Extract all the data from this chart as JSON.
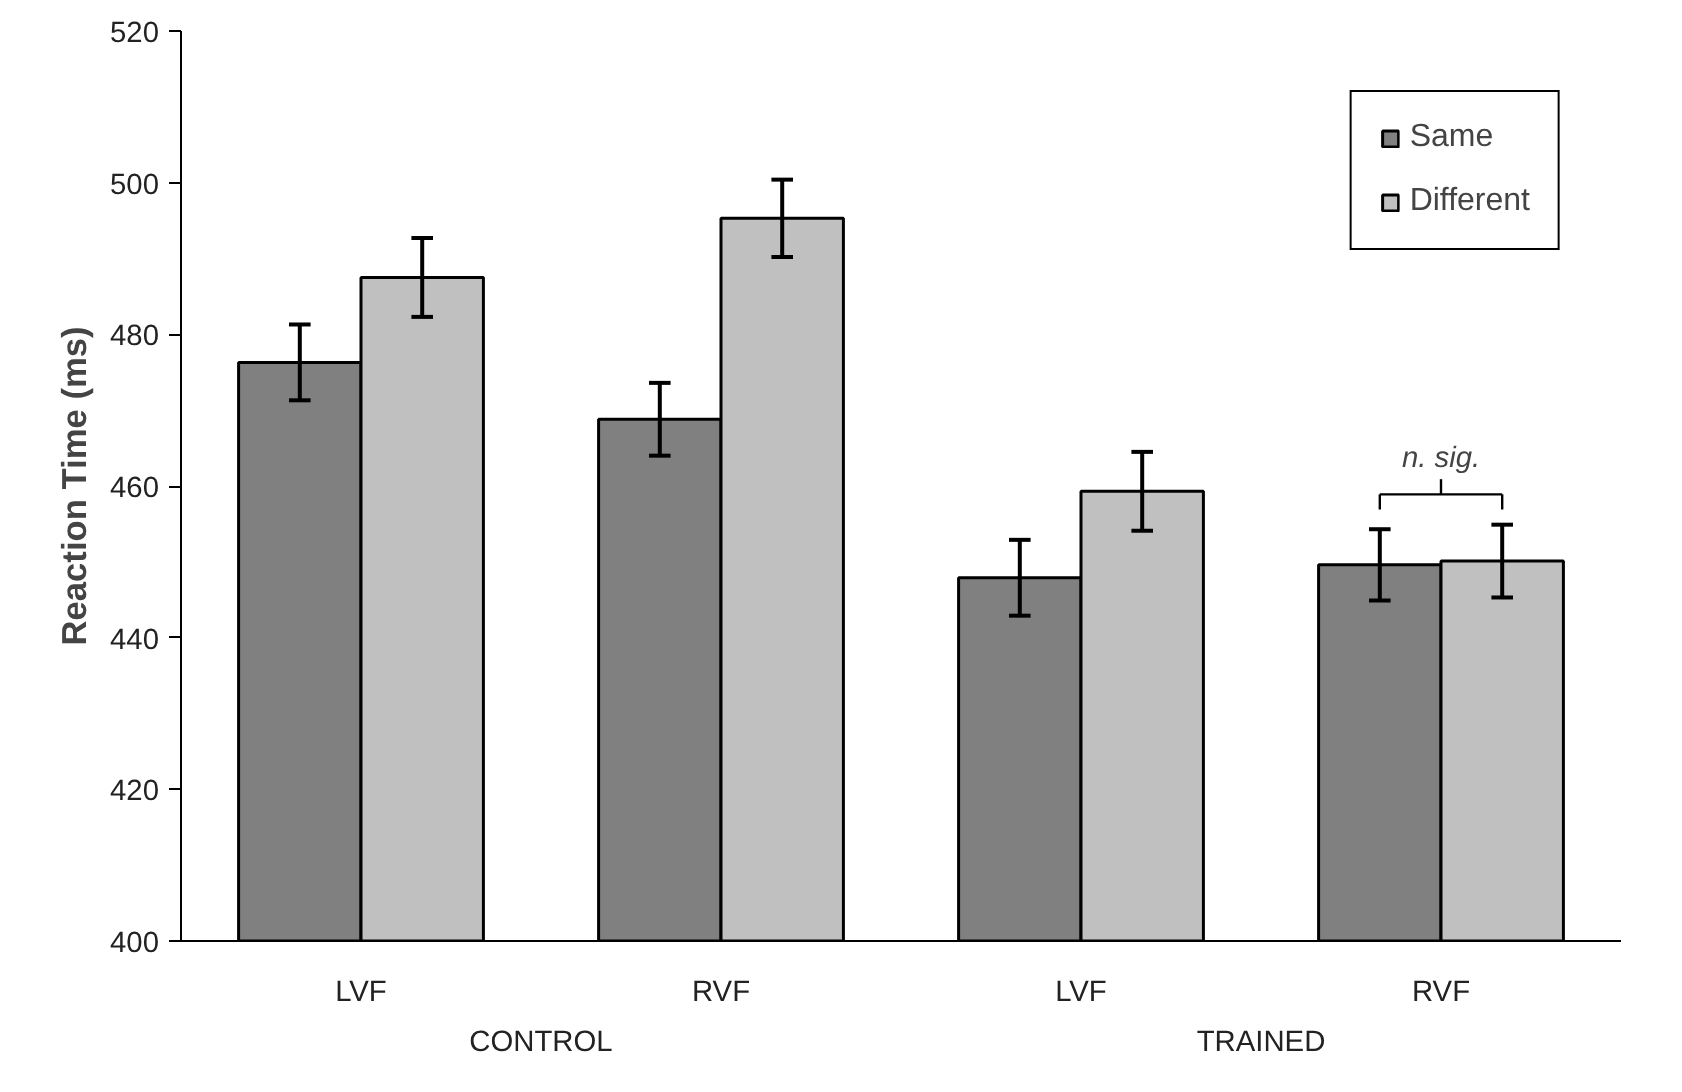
{
  "chart_data": {
    "type": "bar",
    "ylabel": "Reaction Time (ms)",
    "categories": [
      "LVF",
      "RVF",
      "LVF",
      "RVF"
    ],
    "series": [
      {
        "name": "Same",
        "color": "#808080",
        "values": [
          476.3,
          468.8,
          447.9,
          449.6
        ],
        "errors": [
          5,
          4.8,
          5,
          4.7
        ]
      },
      {
        "name": "Different",
        "color": "#c0c0c0",
        "values": [
          487.5,
          495.3,
          459.3,
          450.1
        ],
        "errors": [
          5.2,
          5.1,
          5.2,
          4.8
        ]
      }
    ],
    "ylim": [
      400,
      520
    ],
    "yticks": [
      400,
      420,
      440,
      460,
      480,
      500,
      520
    ],
    "legend": "top right",
    "grid": false,
    "annotations": [
      "CONTROL",
      "TRAINED",
      "n. sig."
    ]
  }
}
